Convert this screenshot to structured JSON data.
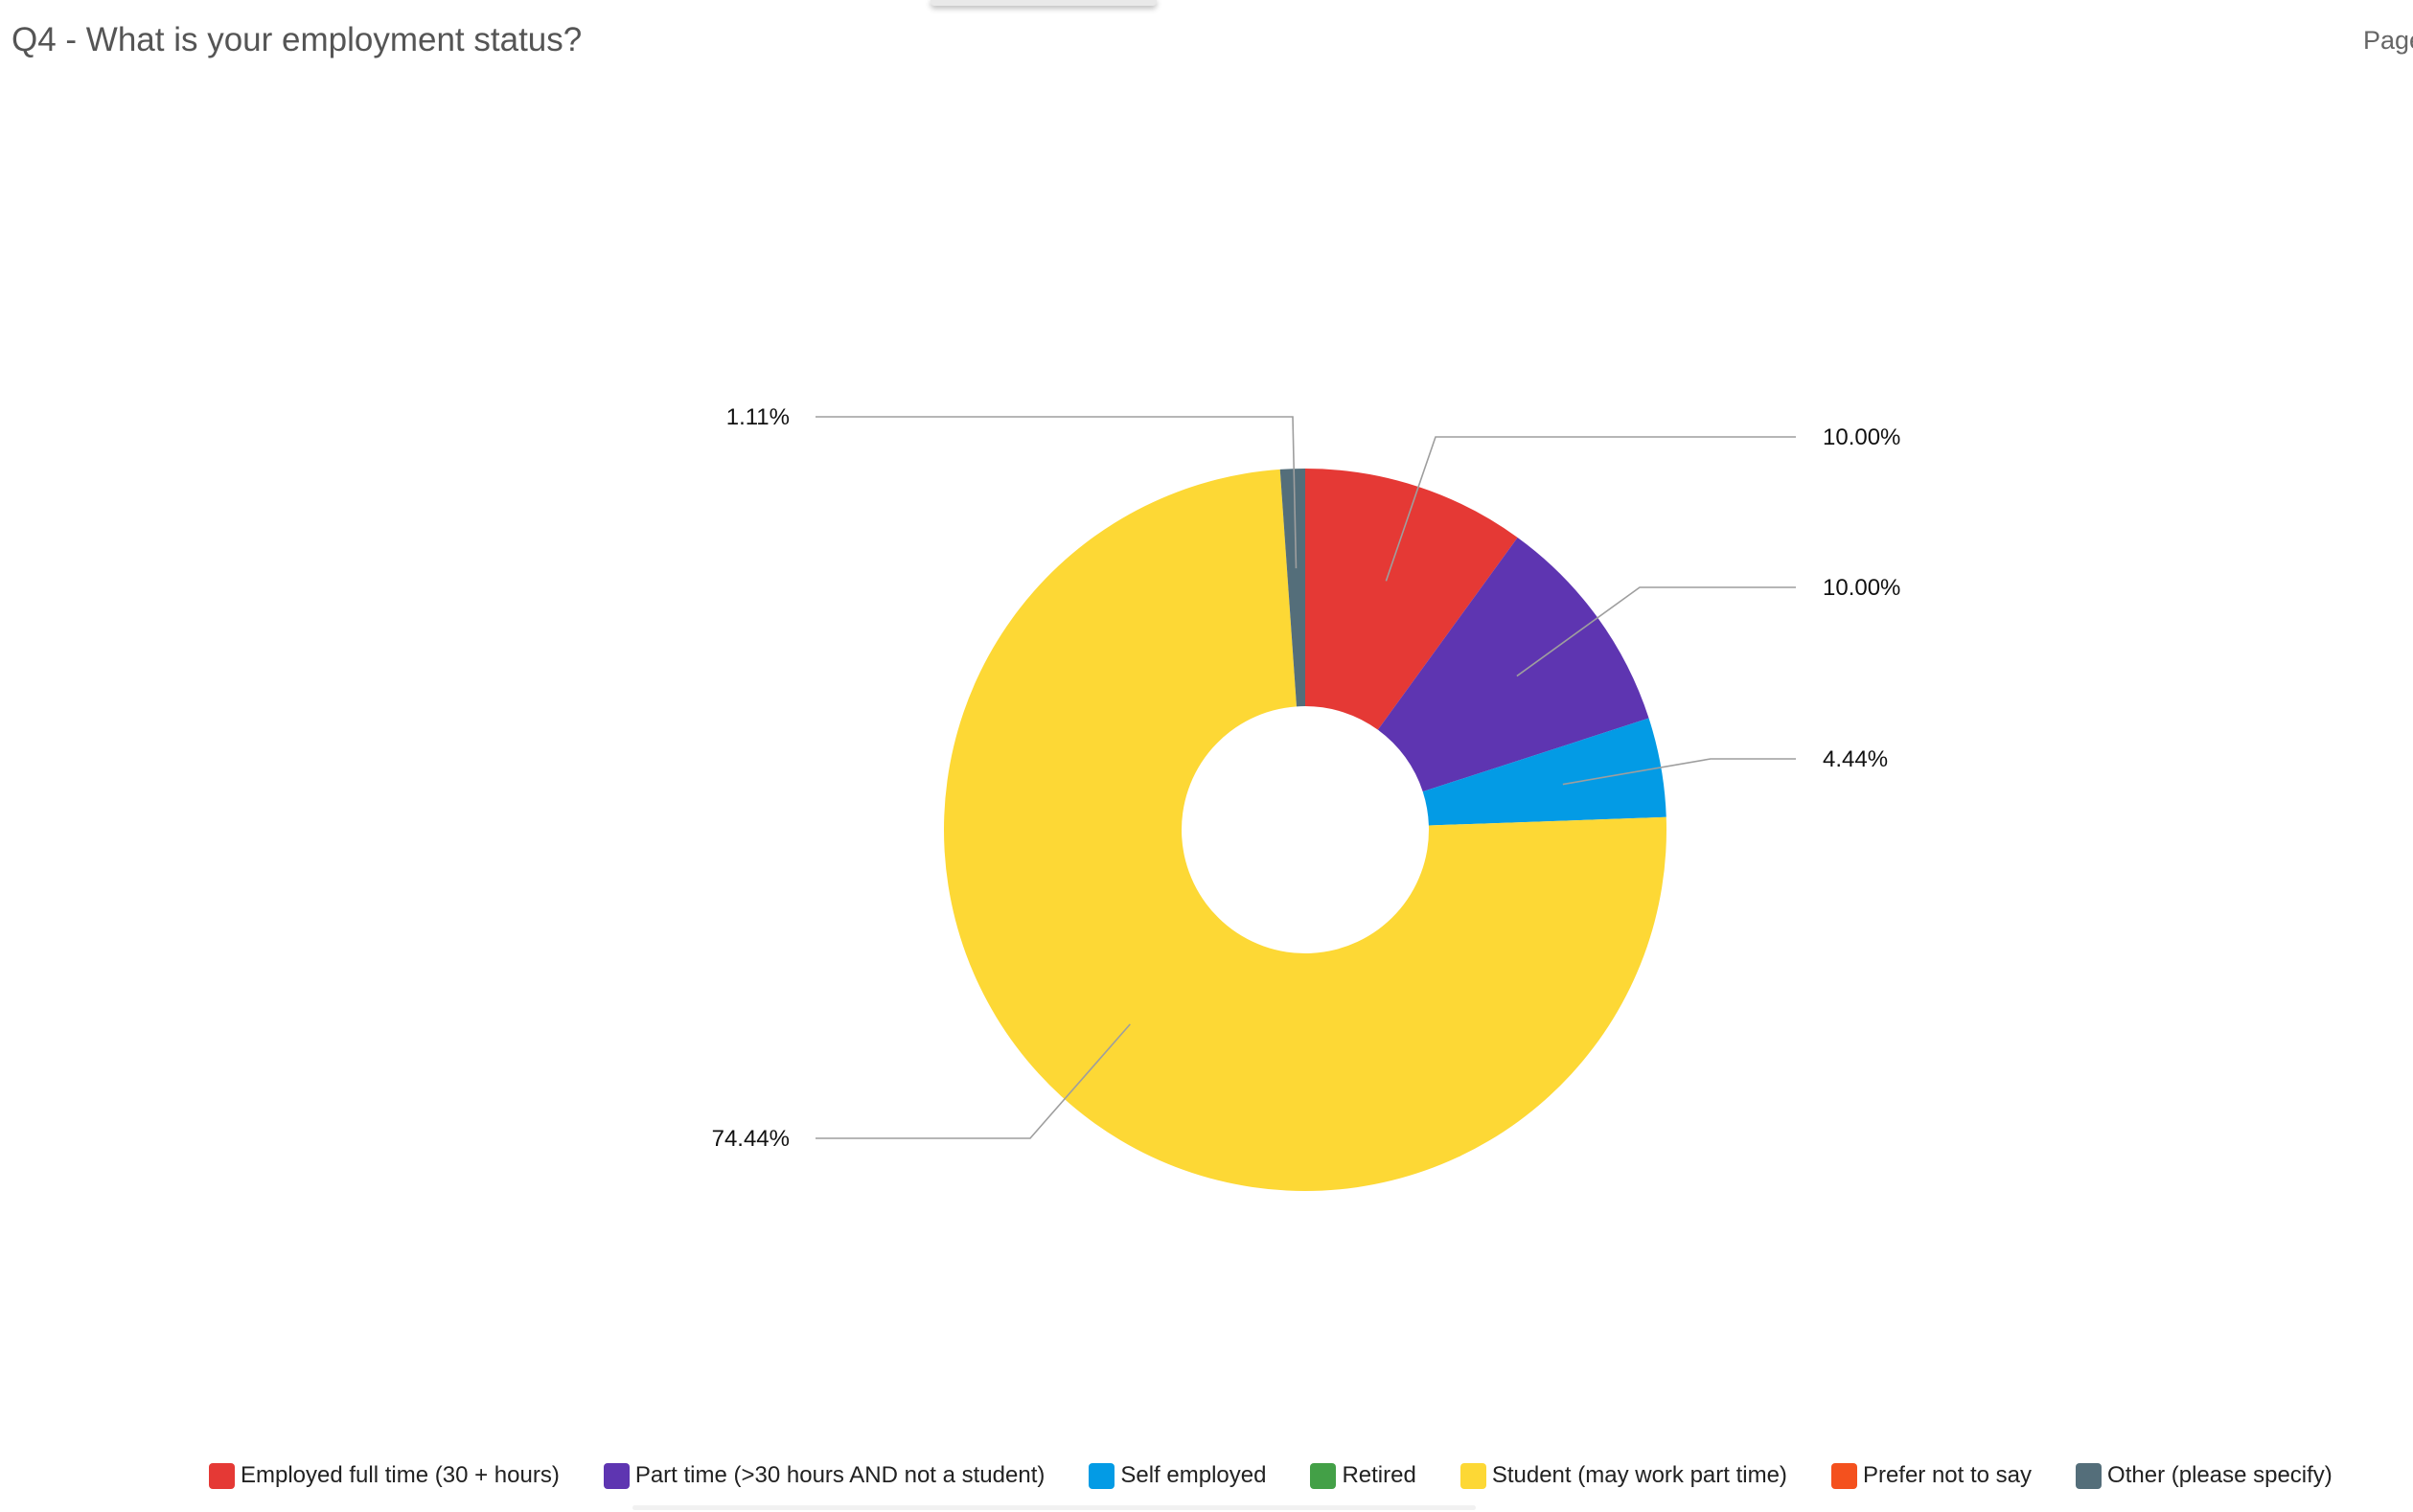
{
  "header": {
    "title": "Q4 - What is your employment status?",
    "page_label": "Page"
  },
  "chart_data": {
    "type": "pie",
    "title": "Q4 - What is your employment status?",
    "donut": true,
    "categories": [
      "Employed full time (30 + hours)",
      "Part time (>30 hours AND not a student)",
      "Self employed",
      "Retired",
      "Student (may work part time)",
      "Prefer not to say",
      "Other (please specify)"
    ],
    "values": [
      10.0,
      10.0,
      4.44,
      0,
      74.44,
      0,
      1.11
    ],
    "labels": [
      "10.00%",
      "10.00%",
      "4.44%",
      "",
      "74.44%",
      "",
      "1.11%"
    ],
    "colors": [
      "#e53935",
      "#5e35b1",
      "#039be5",
      "#43a047",
      "#fdd835",
      "#f4511e",
      "#546e7a"
    ],
    "legend_position": "bottom",
    "unit": "%"
  }
}
